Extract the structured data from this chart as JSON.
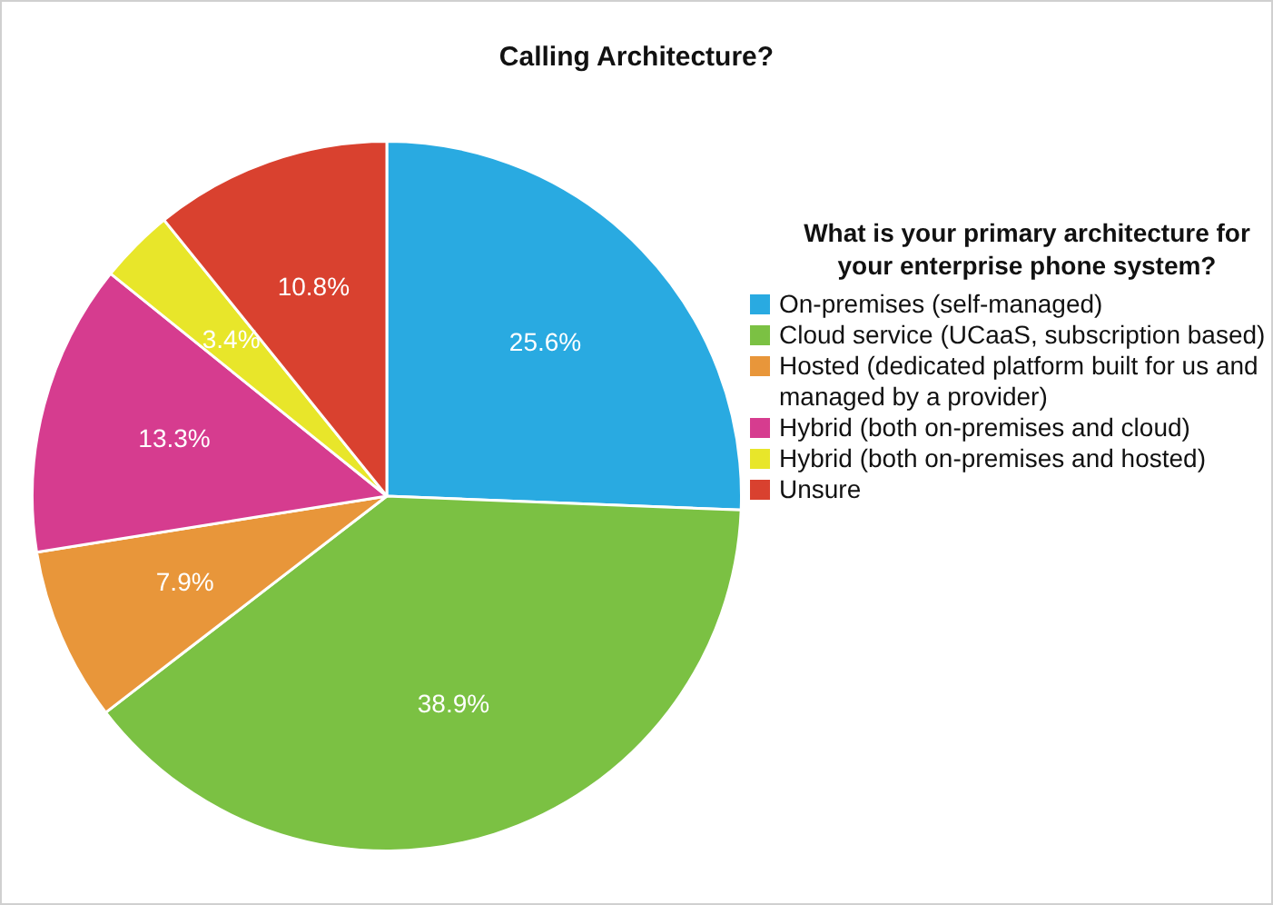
{
  "chart_data": {
    "type": "pie",
    "title": "Calling Architecture?",
    "legend_title": "What is your primary architecture for your enterprise phone system?",
    "legend": "right",
    "categories": [
      "On-premises (self-managed)",
      "Cloud service (UCaaS, subscription based)",
      "Hosted (dedicated platform built for us and managed by a provider)",
      "Hybrid (both on-premises and cloud)",
      "Hybrid (both on-premises and hosted)",
      "Unsure"
    ],
    "values": [
      25.6,
      38.9,
      7.9,
      13.3,
      3.4,
      10.8
    ],
    "value_labels": [
      "25.6%",
      "38.9%",
      "7.9%",
      "13.3%",
      "3.4%",
      "10.8%"
    ],
    "colors": [
      "#29aae1",
      "#7bc143",
      "#e8963a",
      "#d63c8f",
      "#e8e62a",
      "#d9412f"
    ]
  }
}
